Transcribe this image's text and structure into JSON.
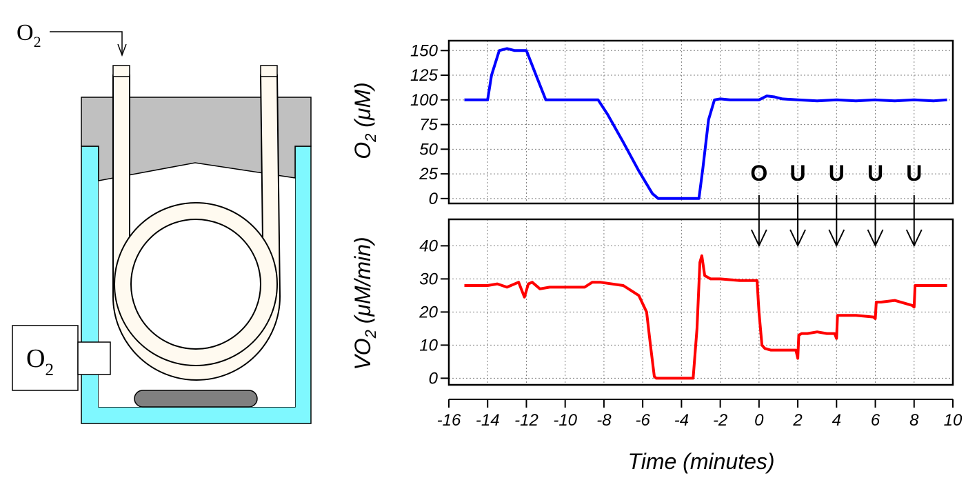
{
  "apparatus": {
    "inlet_label": "O",
    "inlet_sub": "2",
    "probe_label": "O",
    "probe_sub": "2",
    "colors": {
      "water_jacket": "#7ff8ff",
      "lid": "#c0c0c0",
      "tubing": "#fffaf0",
      "stir_bar": "#808080"
    }
  },
  "chart_data": [
    {
      "type": "line",
      "name": "oxygen-concentration",
      "ylabel": "O",
      "ylabel_sub": "2",
      "ylabel_unit": " (μM)",
      "ylim": [
        -5,
        160
      ],
      "yticks": [
        0,
        25,
        50,
        75,
        100,
        125,
        150
      ],
      "xlim": [
        -16,
        10
      ],
      "xticks": [
        -16,
        -14,
        -12,
        -10,
        -8,
        -6,
        -4,
        -2,
        0,
        2,
        4,
        6,
        8,
        10
      ],
      "grid": true,
      "color": "#0000ff",
      "series": [
        {
          "name": "O2",
          "x": [
            -15.2,
            -14.0,
            -13.8,
            -13.4,
            -13.0,
            -12.6,
            -12.0,
            -11.5,
            -11.0,
            -10.5,
            -8.3,
            -7.8,
            -7.0,
            -6.2,
            -5.5,
            -5.2,
            -4.0,
            -3.1,
            -2.9,
            -2.6,
            -2.3,
            -2.0,
            -1.5,
            0.0,
            0.4,
            0.8,
            1.2,
            2.0,
            3.0,
            4.0,
            5.0,
            6.0,
            7.0,
            8.0,
            9.0,
            9.7
          ],
          "y": [
            100,
            100,
            125,
            150,
            152,
            150,
            150,
            125,
            100,
            100,
            100,
            85,
            57,
            28,
            5,
            0,
            0,
            0,
            30,
            80,
            100,
            101,
            100,
            100,
            104,
            103,
            101,
            100,
            99,
            100,
            99,
            100,
            99,
            100,
            99,
            100
          ]
        }
      ],
      "annotations": [
        {
          "text": "O",
          "x": 0
        },
        {
          "text": "U",
          "x": 2
        },
        {
          "text": "U",
          "x": 4
        },
        {
          "text": "U",
          "x": 6
        },
        {
          "text": "U",
          "x": 8
        }
      ]
    },
    {
      "type": "line",
      "name": "oxygen-consumption-rate",
      "ylabel": "VO",
      "ylabel_sub": "2",
      "ylabel_unit": " (μM/min)",
      "ylim": [
        -2,
        48
      ],
      "yticks": [
        0,
        10,
        20,
        30,
        40
      ],
      "xlim": [
        -16,
        10
      ],
      "xticks": [
        -16,
        -14,
        -12,
        -10,
        -8,
        -6,
        -4,
        -2,
        0,
        2,
        4,
        6,
        8,
        10
      ],
      "xlabel": "Time (minutes)",
      "grid": true,
      "color": "#ff0000",
      "series": [
        {
          "name": "VO2",
          "x": [
            -15.2,
            -14.0,
            -13.5,
            -13.0,
            -12.4,
            -12.1,
            -11.9,
            -11.7,
            -11.3,
            -10.8,
            -10.0,
            -9.0,
            -8.6,
            -8.2,
            -7.0,
            -6.2,
            -5.8,
            -5.6,
            -5.4,
            -5.3,
            -5.1,
            -4.0,
            -3.4,
            -3.2,
            -3.05,
            -2.95,
            -2.8,
            -2.5,
            -2.0,
            -1.0,
            -0.1,
            0.0,
            0.15,
            0.3,
            0.6,
            1.0,
            1.5,
            1.9,
            2.0,
            2.05,
            2.2,
            2.5,
            3.0,
            3.5,
            3.9,
            4.0,
            4.05,
            4.2,
            5.0,
            5.9,
            6.0,
            6.05,
            6.3,
            7.0,
            7.9,
            8.0,
            8.05,
            8.3,
            9.0,
            9.7
          ],
          "y": [
            28,
            28,
            28.5,
            27.5,
            29,
            24.5,
            28.5,
            29,
            27,
            27.5,
            27.5,
            27.5,
            29,
            29,
            28,
            25,
            20,
            10,
            0.5,
            0,
            0,
            0,
            0,
            15,
            35,
            37,
            31,
            30,
            30,
            29.5,
            29.5,
            20,
            10,
            9,
            8.5,
            8.5,
            8.5,
            8.5,
            6,
            13,
            13.5,
            13.5,
            14,
            13.5,
            13.5,
            12,
            19,
            19,
            19,
            18.5,
            18,
            23,
            23,
            23.5,
            22,
            21.5,
            28,
            28,
            28,
            28
          ]
        }
      ]
    }
  ]
}
